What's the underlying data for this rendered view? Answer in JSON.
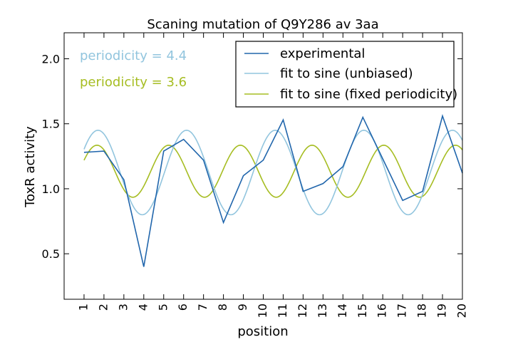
{
  "chart_data": {
    "type": "line",
    "title": "Scaning mutation of Q9Y286 av 3aa",
    "xlabel": "position",
    "ylabel": "ToxR activity",
    "xlim": [
      0,
      20
    ],
    "ylim": [
      0.15,
      2.2
    ],
    "x_ticks": [
      1,
      2,
      3,
      4,
      5,
      6,
      7,
      8,
      9,
      10,
      11,
      12,
      13,
      14,
      15,
      16,
      17,
      18,
      19,
      20
    ],
    "y_ticks": [
      0.5,
      1.0,
      1.5,
      2.0
    ],
    "y_tick_labels": [
      "0.5",
      "1.0",
      "1.5",
      "2.0"
    ],
    "grid": false,
    "legend_position": "top-right",
    "series": [
      {
        "name": "experimental",
        "color": "#2166ac",
        "x": [
          1,
          2,
          3,
          4,
          5,
          6,
          7,
          8,
          9,
          10,
          11,
          12,
          13,
          14,
          15,
          16,
          17,
          18,
          19,
          20
        ],
        "values": [
          1.28,
          1.29,
          1.07,
          0.4,
          1.29,
          1.38,
          1.22,
          0.74,
          1.1,
          1.22,
          1.53,
          0.98,
          1.04,
          1.17,
          1.55,
          1.23,
          0.91,
          0.98,
          1.56,
          1.12
        ]
      },
      {
        "name": "fit to sine (unbiased)",
        "color": "#92c5de",
        "curve": "sine",
        "amplitude": 0.325,
        "offset": 1.125,
        "period": 4.45,
        "peak_x": 1.7
      },
      {
        "name": "fit to sine (fixed periodicity)",
        "color": "#a6bd22",
        "curve": "sine",
        "amplitude": 0.2,
        "offset": 1.135,
        "period": 3.6,
        "peak_x": 1.65
      }
    ],
    "annotations": [
      {
        "text": "periodicity = 4.4",
        "color": "#92c5de"
      },
      {
        "text": "periodicity = 3.6",
        "color": "#a6bd22"
      }
    ]
  }
}
